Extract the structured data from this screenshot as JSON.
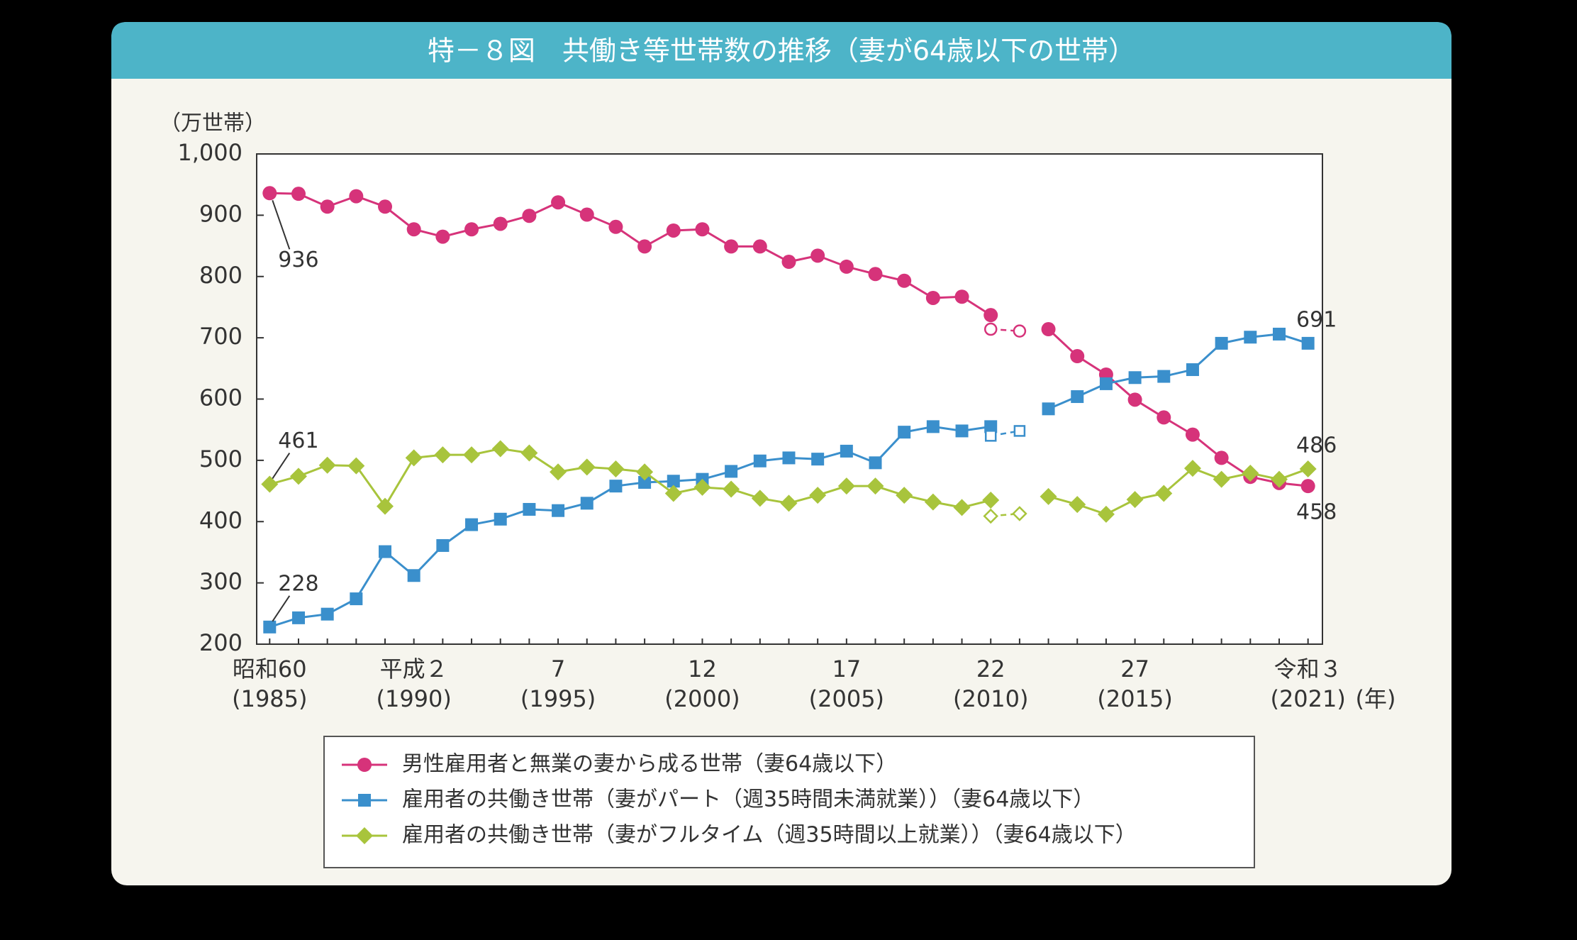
{
  "chart_data": {
    "type": "line",
    "title": "特－８図　共働き等世帯数の推移（妻が64歳以下の世帯）",
    "y_unit": "（万世帯）",
    "x_unit": "(年)",
    "x": [
      1985,
      1986,
      1987,
      1988,
      1989,
      1990,
      1991,
      1992,
      1993,
      1994,
      1995,
      1996,
      1997,
      1998,
      1999,
      2000,
      2001,
      2002,
      2003,
      2004,
      2005,
      2006,
      2007,
      2008,
      2009,
      2010,
      2011,
      2012,
      2013,
      2014,
      2015,
      2016,
      2017,
      2018,
      2019,
      2020,
      2021
    ],
    "xlim": [
      1984.55,
      2021.5
    ],
    "xticks": [
      {
        "value": 1985,
        "label": "昭和60\n(1985)"
      },
      {
        "value": 1990,
        "label": "平成２\n(1990)"
      },
      {
        "value": 1995,
        "label": "7\n(1995)"
      },
      {
        "value": 2000,
        "label": "12\n(2000)"
      },
      {
        "value": 2005,
        "label": "17\n(2005)"
      },
      {
        "value": 2010,
        "label": "22\n(2010)"
      },
      {
        "value": 2015,
        "label": "27\n(2015)"
      },
      {
        "value": 2021,
        "label": "令和３\n(2021)"
      }
    ],
    "ylim": [
      200,
      1000
    ],
    "yticks": [
      200,
      300,
      400,
      500,
      600,
      700,
      800,
      900,
      {
        "value": 1000,
        "label": "1,000"
      }
    ],
    "series": [
      {
        "name": "男性雇用者と無業の妻から成る世帯（妻64歳以下）",
        "color": "#d6337a",
        "marker": "circle",
        "values": [
          936,
          935,
          914,
          931,
          914,
          877,
          865,
          877,
          886,
          899,
          921,
          901,
          881,
          849,
          875,
          877,
          849,
          849,
          824,
          834,
          816,
          804,
          793,
          765,
          767,
          737,
          null,
          714,
          670,
          640,
          599,
          570,
          542,
          504,
          473,
          463,
          458
        ],
        "hollow_values": [
          null,
          null,
          null,
          null,
          null,
          null,
          null,
          null,
          null,
          null,
          null,
          null,
          null,
          null,
          null,
          null,
          null,
          null,
          null,
          null,
          null,
          null,
          null,
          null,
          null,
          714,
          711,
          null,
          null,
          null,
          null,
          null,
          null,
          null,
          null,
          null,
          null
        ],
        "label_points": [
          0,
          36
        ]
      },
      {
        "name": "雇用者の共働き世帯（妻がパート（週35時間未満就業））（妻64歳以下）",
        "color": "#3a8fcc",
        "marker": "square",
        "values": [
          228,
          243,
          249,
          274,
          351,
          312,
          361,
          395,
          404,
          420,
          418,
          430,
          458,
          464,
          466,
          469,
          482,
          499,
          504,
          502,
          515,
          496,
          546,
          555,
          548,
          555,
          null,
          584,
          604,
          625,
          635,
          637,
          648,
          691,
          701,
          706,
          691
        ],
        "hollow_values": [
          null,
          null,
          null,
          null,
          null,
          null,
          null,
          null,
          null,
          null,
          null,
          null,
          null,
          null,
          null,
          null,
          null,
          null,
          null,
          null,
          null,
          null,
          null,
          null,
          null,
          540,
          548,
          null,
          null,
          null,
          null,
          null,
          null,
          null,
          null,
          null,
          null
        ],
        "label_points": [
          0,
          36
        ]
      },
      {
        "name": "雇用者の共働き世帯（妻がフルタイム（週35時間以上就業））（妻64歳以下）",
        "color": "#a8c43c",
        "marker": "diamond",
        "values": [
          461,
          474,
          492,
          491,
          425,
          504,
          509,
          509,
          519,
          512,
          481,
          489,
          486,
          481,
          446,
          456,
          453,
          438,
          430,
          443,
          458,
          458,
          443,
          432,
          423,
          435,
          null,
          441,
          428,
          412,
          436,
          446,
          487,
          469,
          479,
          469,
          486
        ],
        "hollow_values": [
          null,
          null,
          null,
          null,
          null,
          null,
          null,
          null,
          null,
          null,
          null,
          null,
          null,
          null,
          null,
          null,
          null,
          null,
          null,
          null,
          null,
          null,
          null,
          null,
          null,
          409,
          413,
          null,
          null,
          null,
          null,
          null,
          null,
          null,
          null,
          null,
          null
        ],
        "label_points": [
          0,
          36
        ]
      }
    ],
    "grid": false
  }
}
